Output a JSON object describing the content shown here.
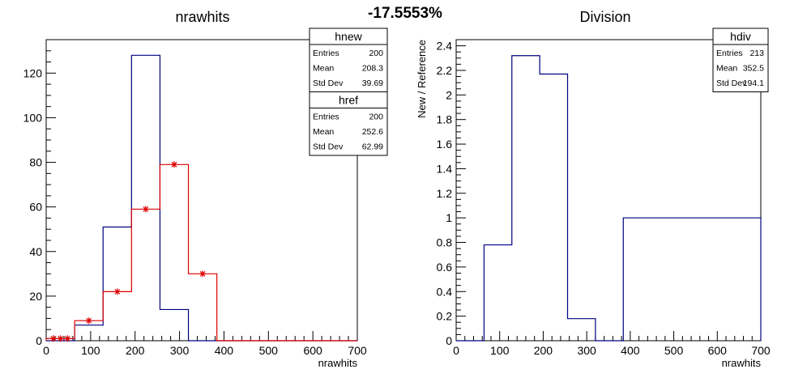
{
  "header": {
    "percent": "-17.5553%"
  },
  "colors": {
    "new": "#00007f",
    "ref": "#dd0000",
    "div": "#00007f",
    "axis": "#000000"
  },
  "chart_data": [
    {
      "type": "bar",
      "title": "nrawhits",
      "xlabel": "nrawhits",
      "ylabel": "",
      "xlim": [
        0,
        700
      ],
      "ylim": [
        0,
        135
      ],
      "xticks": [
        "0",
        "100",
        "200",
        "300",
        "400",
        "500",
        "600",
        "700"
      ],
      "yticks": [
        "0",
        "20",
        "40",
        "60",
        "80",
        "100",
        "120"
      ],
      "bin_edges": [
        0,
        64,
        128,
        192,
        256,
        320,
        384,
        448,
        512,
        576,
        640,
        704
      ],
      "series": [
        {
          "name": "hnew",
          "values": [
            0,
            7,
            51,
            128,
            14,
            0,
            0,
            0,
            0,
            0,
            0
          ]
        },
        {
          "name": "href",
          "values": [
            1,
            9,
            22,
            59,
            79,
            30,
            0,
            0,
            0,
            0,
            0
          ],
          "extra_points": [
            {
              "x": 16,
              "y": 1
            },
            {
              "x": 48,
              "y": 1
            }
          ]
        }
      ],
      "stats": [
        {
          "name": "hnew",
          "rows": [
            {
              "label": "Entries",
              "value": "200"
            },
            {
              "label": "Mean",
              "value": "208.3"
            },
            {
              "label": "Std Dev",
              "value": "39.69"
            }
          ]
        },
        {
          "name": "href",
          "rows": [
            {
              "label": "Entries",
              "value": "200"
            },
            {
              "label": "Mean",
              "value": "252.6"
            },
            {
              "label": "Std Dev",
              "value": "62.99"
            }
          ]
        }
      ]
    },
    {
      "type": "bar",
      "title": "Division",
      "xlabel": "nrawhits",
      "ylabel": "New / Reference",
      "xlim": [
        0,
        700
      ],
      "ylim": [
        0,
        2.45
      ],
      "xticks": [
        "0",
        "100",
        "200",
        "300",
        "400",
        "500",
        "600",
        "700"
      ],
      "yticks": [
        "0",
        "0.2",
        "0.4",
        "0.6",
        "0.8",
        "1",
        "1.2",
        "1.4",
        "1.6",
        "1.8",
        "2",
        "2.2",
        "2.4"
      ],
      "bin_edges": [
        0,
        64,
        128,
        192,
        256,
        320,
        384,
        448,
        512,
        576,
        640,
        704
      ],
      "series": [
        {
          "name": "hdiv",
          "values": [
            0,
            0.78,
            2.32,
            2.17,
            0.18,
            0,
            1,
            1,
            1,
            1,
            1
          ]
        }
      ],
      "stats": [
        {
          "name": "hdiv",
          "rows": [
            {
              "label": "Entries",
              "value": "213"
            },
            {
              "label": "Mean",
              "value": "352.5"
            },
            {
              "label": "Std Dev",
              "value": "194.1"
            }
          ]
        }
      ]
    }
  ]
}
